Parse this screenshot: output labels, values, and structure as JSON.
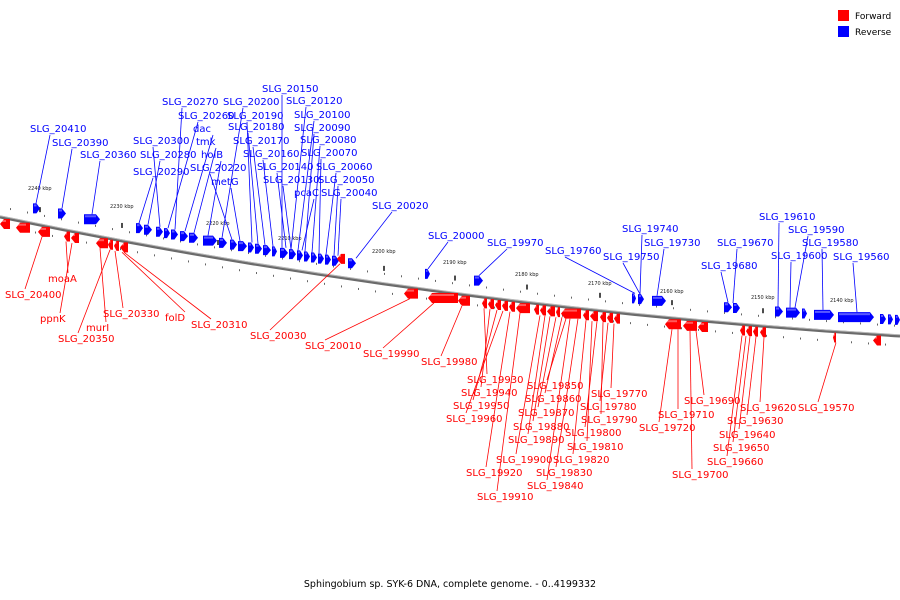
{
  "caption": "Sphingobium sp. SYK-6 DNA, complete genome. - 0..4199332",
  "legend": [
    {
      "label": "Forward",
      "color": "#ff0000"
    },
    {
      "label": "Reverse",
      "color": "#0000ff"
    }
  ],
  "ticks": [
    "2240 kbp",
    "2230 kbp",
    "2220 kbp",
    "2210 kbp",
    "2200 kbp",
    "2190 kbp",
    "2180 kbp",
    "2170 kbp",
    "2160 kbp",
    "2150 kbp",
    "2140 kbp"
  ],
  "reverse_labels": [
    "SLG_20410",
    "SLG_20390",
    "SLG_20360",
    "SLG_20290",
    "SLG_20280",
    "SLG_20300",
    "SLG_20260",
    "SLG_20270",
    "dac",
    "tmk",
    "holB",
    "SLG_20200",
    "SLG_20220",
    "metG",
    "SLG_20190",
    "SLG_20180",
    "SLG_20170",
    "SLG_20160",
    "SLG_20150",
    "SLG_20120",
    "SLG_20100",
    "SLG_20090",
    "SLG_20080",
    "SLG_20070",
    "SLG_20060",
    "SLG_20050",
    "SLG_20040",
    "SLG_20140",
    "SLG_20130",
    "pcaC",
    "SLG_20020",
    "SLG_20000",
    "SLG_19970",
    "SLG_19760",
    "SLG_19750",
    "SLG_19740",
    "SLG_19730",
    "SLG_19680",
    "SLG_19670",
    "SLG_19610",
    "SLG_19600",
    "SLG_19590",
    "SLG_19580",
    "SLG_19560"
  ],
  "forward_labels": [
    "SLG_20400",
    "moaA",
    "ppnK",
    "murI",
    "SLG_20350",
    "SLG_20330",
    "folD",
    "SLG_20310",
    "SLG_20030",
    "SLG_20010",
    "SLG_19990",
    "SLG_19980",
    "SLG_19930",
    "SLG_19940",
    "SLG_19950",
    "SLG_19960",
    "SLG_19920",
    "SLG_19910",
    "SLG_19900",
    "SLG_19890",
    "SLG_19880",
    "SLG_19870",
    "SLG_19860",
    "SLG_19850",
    "SLG_19840",
    "SLG_19830",
    "SLG_19820",
    "SLG_19810",
    "SLG_19800",
    "SLG_19790",
    "SLG_19780",
    "SLG_19770",
    "SLG_19720",
    "SLG_19710",
    "SLG_19700",
    "SLG_19690",
    "SLG_19660",
    "SLG_19650",
    "SLG_19640",
    "SLG_19630",
    "SLG_19620",
    "SLG_19570"
  ]
}
